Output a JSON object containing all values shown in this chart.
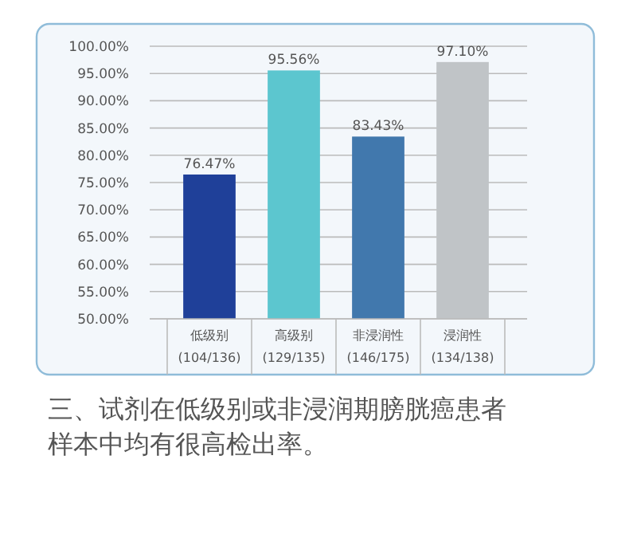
{
  "chart_data": {
    "type": "bar",
    "categories": [
      "低级别\n(104/136)",
      "高级别\n(129/135)",
      "非浸润性\n(146/175)",
      "浸润性\n(134/138)"
    ],
    "values": [
      76.47,
      95.56,
      83.43,
      97.1
    ],
    "colors": [
      "#1f4099",
      "#5cc6cf",
      "#4178ad",
      "#c0c4c7"
    ],
    "value_labels": [
      "76.47%",
      "95.56%",
      "83.43%",
      "97.10%"
    ],
    "ylim": [
      50,
      100
    ],
    "yticks": [
      {
        "value": 50,
        "label": "50.00%"
      },
      {
        "value": 55,
        "label": "55.00%"
      },
      {
        "value": 60,
        "label": "60.00%"
      },
      {
        "value": 65,
        "label": "65.00%"
      },
      {
        "value": 70,
        "label": "70.00%"
      },
      {
        "value": 75,
        "label": "75.00%"
      },
      {
        "value": 80,
        "label": "80.00%"
      },
      {
        "value": 85,
        "label": "85.00%"
      },
      {
        "value": 90,
        "label": "90.00%"
      },
      {
        "value": 95,
        "label": "95.00%"
      },
      {
        "value": 100,
        "label": "100.00%"
      }
    ],
    "grid": "y",
    "annotations": [
      "三、试剂在低级别或非浸润期膀胱癌患者样本中均有很高检出率。"
    ]
  }
}
